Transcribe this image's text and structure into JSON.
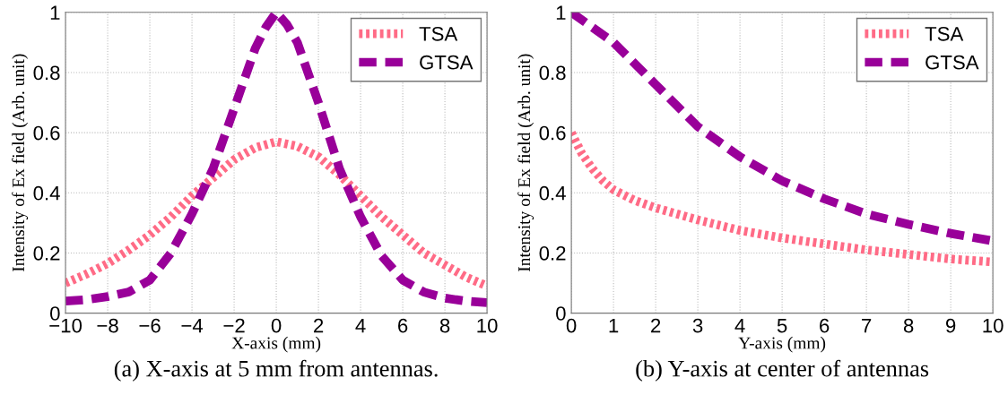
{
  "chart_data": [
    {
      "type": "line",
      "title": "(a) X-axis at 5 mm from antennas.",
      "xlabel": "X-axis (mm)",
      "ylabel": "Intensity of Ex field (Arb. unit)",
      "xlim": [
        -10,
        10
      ],
      "ylim": [
        0,
        1
      ],
      "xticks": [
        {
          "value": -10,
          "label": "−10"
        },
        {
          "value": -8,
          "label": "−8"
        },
        {
          "value": -6,
          "label": "−6"
        },
        {
          "value": -4,
          "label": "−4"
        },
        {
          "value": -2,
          "label": "−2"
        },
        0,
        2,
        4,
        6,
        8,
        10
      ],
      "yticks": [
        0,
        0.2,
        0.4,
        0.6,
        0.8,
        1
      ],
      "grid": true,
      "legend": "top right",
      "marker": "none",
      "series": [
        {
          "name": "TSA",
          "color": "#ff6b86",
          "line_style": "dotted",
          "x": [
            -10,
            -9,
            -8,
            -7,
            -6,
            -5,
            -4,
            -3,
            -2,
            -1,
            0,
            1,
            2,
            3,
            4,
            5,
            6,
            7,
            8,
            9,
            10
          ],
          "values": [
            0.1,
            0.13,
            0.165,
            0.21,
            0.26,
            0.32,
            0.39,
            0.45,
            0.51,
            0.55,
            0.57,
            0.555,
            0.52,
            0.46,
            0.39,
            0.32,
            0.26,
            0.2,
            0.16,
            0.12,
            0.09
          ]
        },
        {
          "name": "GTSA",
          "color": "#990099",
          "line_style": "dashed",
          "x": [
            -10,
            -9,
            -8,
            -7,
            -6,
            -5,
            -4,
            -3,
            -2,
            -1,
            -0.5,
            0,
            0.5,
            1,
            2,
            3,
            4,
            5,
            6,
            7,
            8,
            9,
            10
          ],
          "values": [
            0.04,
            0.045,
            0.055,
            0.07,
            0.11,
            0.2,
            0.33,
            0.48,
            0.68,
            0.88,
            0.95,
            1.0,
            0.96,
            0.9,
            0.7,
            0.48,
            0.32,
            0.19,
            0.11,
            0.07,
            0.05,
            0.04,
            0.035
          ]
        }
      ]
    },
    {
      "type": "line",
      "title": "(b) Y-axis at center of antennas",
      "xlabel": "Y-axis (mm)",
      "ylabel": "Intensity of Ex field (Arb. unit)",
      "xlim": [
        0,
        10
      ],
      "ylim": [
        0,
        1
      ],
      "xticks": [
        0,
        1,
        2,
        3,
        4,
        5,
        6,
        7,
        8,
        9,
        10
      ],
      "yticks": [
        0,
        0.2,
        0.4,
        0.6,
        0.8,
        1
      ],
      "grid": true,
      "legend": "top right",
      "marker": "none",
      "series": [
        {
          "name": "TSA",
          "color": "#ff6b86",
          "line_style": "dotted",
          "x": [
            0,
            0.25,
            0.5,
            0.75,
            1,
            1.5,
            2,
            3,
            4,
            5,
            6,
            7,
            8,
            9,
            10
          ],
          "values": [
            0.6,
            0.53,
            0.48,
            0.44,
            0.41,
            0.375,
            0.35,
            0.31,
            0.275,
            0.25,
            0.23,
            0.21,
            0.195,
            0.18,
            0.17
          ]
        },
        {
          "name": "GTSA",
          "color": "#990099",
          "line_style": "dashed",
          "x": [
            0,
            1,
            2,
            3,
            4,
            5,
            6,
            7,
            8,
            9,
            10
          ],
          "values": [
            1.0,
            0.9,
            0.76,
            0.62,
            0.52,
            0.44,
            0.38,
            0.33,
            0.295,
            0.265,
            0.24
          ]
        }
      ]
    }
  ]
}
